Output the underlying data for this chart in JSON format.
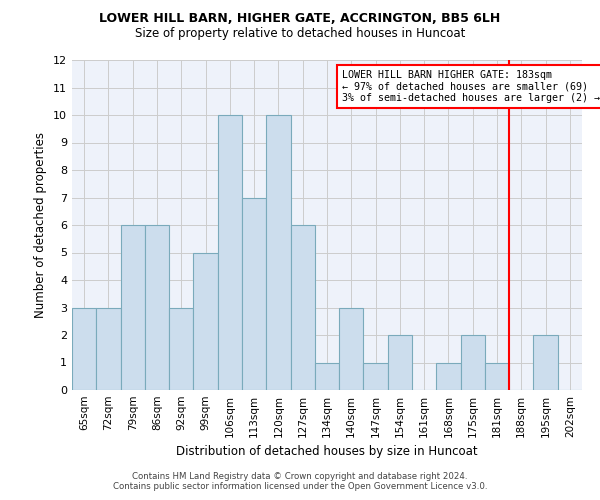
{
  "title1": "LOWER HILL BARN, HIGHER GATE, ACCRINGTON, BB5 6LH",
  "title2": "Size of property relative to detached houses in Huncoat",
  "xlabel": "Distribution of detached houses by size in Huncoat",
  "ylabel": "Number of detached properties",
  "categories": [
    "65sqm",
    "72sqm",
    "79sqm",
    "86sqm",
    "92sqm",
    "99sqm",
    "106sqm",
    "113sqm",
    "120sqm",
    "127sqm",
    "134sqm",
    "140sqm",
    "147sqm",
    "154sqm",
    "161sqm",
    "168sqm",
    "175sqm",
    "181sqm",
    "188sqm",
    "195sqm",
    "202sqm"
  ],
  "values": [
    3,
    3,
    6,
    6,
    3,
    5,
    10,
    7,
    10,
    6,
    1,
    3,
    1,
    2,
    0,
    1,
    2,
    1,
    0,
    2,
    0
  ],
  "bar_color": "#ccdded",
  "bar_edge_color": "#7aaabb",
  "ylim": [
    0,
    12
  ],
  "yticks": [
    0,
    1,
    2,
    3,
    4,
    5,
    6,
    7,
    8,
    9,
    10,
    11,
    12
  ],
  "red_line_x": 17.5,
  "annotation_text": "LOWER HILL BARN HIGHER GATE: 183sqm\n← 97% of detached houses are smaller (69)\n3% of semi-detached houses are larger (2) →",
  "footer1": "Contains HM Land Registry data © Crown copyright and database right 2024.",
  "footer2": "Contains public sector information licensed under the Open Government Licence v3.0.",
  "grid_color": "#cccccc",
  "background_color": "#eef2fa"
}
